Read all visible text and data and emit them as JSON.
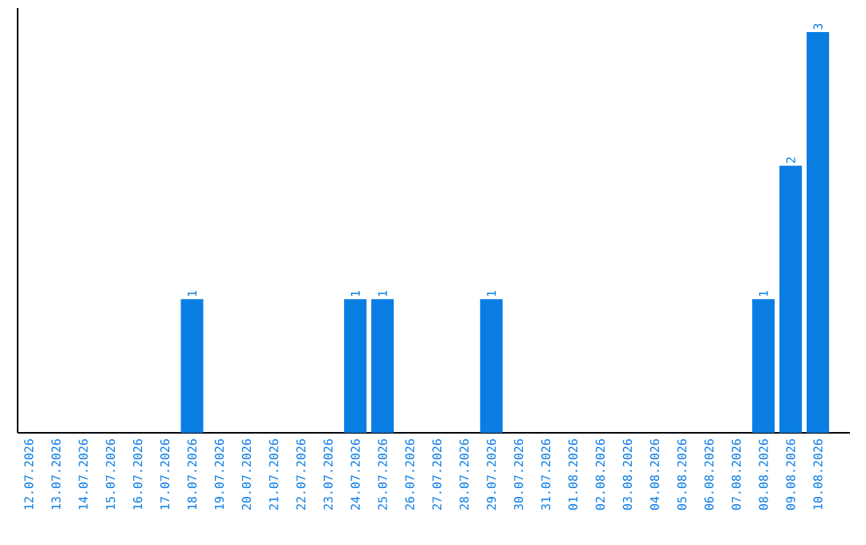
{
  "chart_data": {
    "type": "bar",
    "color": "#0a7de3",
    "categories": [
      "12.07.2026",
      "13.07.2026",
      "14.07.2026",
      "15.07.2026",
      "16.07.2026",
      "17.07.2026",
      "18.07.2026",
      "19.07.2026",
      "20.07.2026",
      "21.07.2026",
      "22.07.2026",
      "23.07.2026",
      "24.07.2026",
      "25.07.2026",
      "26.07.2026",
      "27.07.2026",
      "28.07.2026",
      "29.07.2026",
      "30.07.2026",
      "31.07.2026",
      "01.08.2026",
      "02.08.2026",
      "03.08.2026",
      "04.08.2026",
      "05.08.2026",
      "06.08.2026",
      "07.08.2026",
      "08.08.2026",
      "09.08.2026",
      "10.08.2026"
    ],
    "values": [
      0,
      0,
      0,
      0,
      0,
      0,
      1,
      0,
      0,
      0,
      0,
      0,
      1,
      1,
      0,
      0,
      0,
      1,
      0,
      0,
      0,
      0,
      0,
      0,
      0,
      0,
      0,
      1,
      2,
      3
    ],
    "value_labels": [
      null,
      null,
      null,
      null,
      null,
      null,
      "1",
      null,
      null,
      null,
      null,
      null,
      "1",
      "1",
      null,
      null,
      null,
      "1",
      null,
      null,
      null,
      null,
      null,
      null,
      null,
      null,
      null,
      "1",
      "2",
      "3"
    ],
    "tick_labels": "x"
  }
}
